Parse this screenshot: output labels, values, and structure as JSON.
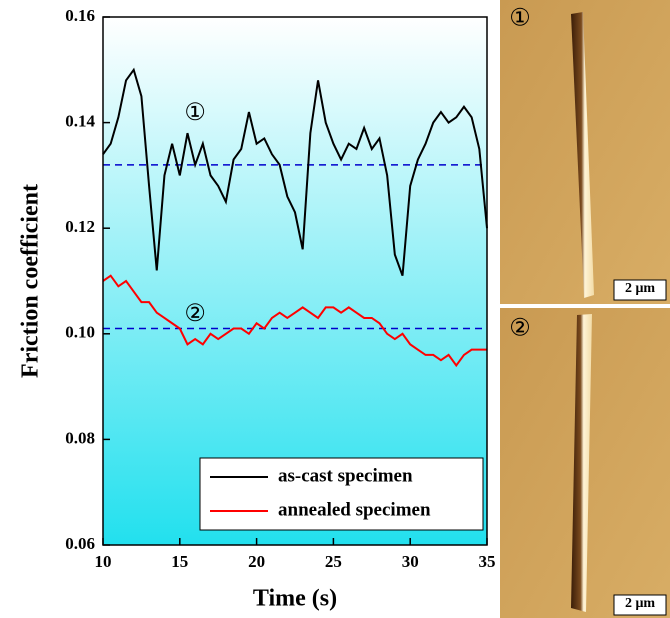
{
  "chart_data": {
    "type": "line",
    "xlabel": "Time (s)",
    "ylabel": "Friction coefficient",
    "x": [
      10,
      10.5,
      11,
      11.5,
      12,
      12.5,
      13,
      13.5,
      14,
      14.5,
      15,
      15.5,
      16,
      16.5,
      17,
      17.5,
      18,
      18.5,
      19,
      19.5,
      20,
      20.5,
      21,
      21.5,
      22,
      22.5,
      23,
      23.5,
      24,
      24.5,
      25,
      25.5,
      26,
      26.5,
      27,
      27.5,
      28,
      28.5,
      29,
      29.5,
      30,
      30.5,
      31,
      31.5,
      32,
      32.5,
      33,
      33.5,
      34,
      34.5,
      35
    ],
    "series": [
      {
        "name": "as-cast specimen",
        "color": "#000000",
        "values": [
          0.134,
          0.136,
          0.141,
          0.148,
          0.15,
          0.145,
          0.128,
          0.112,
          0.13,
          0.136,
          0.13,
          0.138,
          0.132,
          0.136,
          0.13,
          0.128,
          0.125,
          0.133,
          0.135,
          0.142,
          0.136,
          0.137,
          0.134,
          0.132,
          0.126,
          0.123,
          0.116,
          0.138,
          0.148,
          0.14,
          0.136,
          0.133,
          0.136,
          0.135,
          0.139,
          0.135,
          0.137,
          0.13,
          0.115,
          0.111,
          0.128,
          0.133,
          0.136,
          0.14,
          0.142,
          0.14,
          0.141,
          0.143,
          0.141,
          0.135,
          0.12
        ]
      },
      {
        "name": "annealed specimen",
        "color": "#ff0000",
        "values": [
          0.11,
          0.111,
          0.109,
          0.11,
          0.108,
          0.106,
          0.106,
          0.104,
          0.103,
          0.102,
          0.101,
          0.098,
          0.099,
          0.098,
          0.1,
          0.099,
          0.1,
          0.101,
          0.101,
          0.1,
          0.102,
          0.101,
          0.103,
          0.104,
          0.103,
          0.104,
          0.105,
          0.104,
          0.103,
          0.105,
          0.105,
          0.104,
          0.105,
          0.104,
          0.103,
          0.103,
          0.102,
          0.1,
          0.099,
          0.1,
          0.098,
          0.097,
          0.096,
          0.096,
          0.095,
          0.096,
          0.094,
          0.096,
          0.097,
          0.097,
          0.097
        ]
      }
    ],
    "hlines": [
      {
        "value": 0.132,
        "color": "#0000cc"
      },
      {
        "value": 0.101,
        "color": "#0000cc"
      }
    ],
    "annotations": [
      "①",
      "②"
    ],
    "xlim": [
      10,
      35
    ],
    "xticks": [
      10,
      15,
      20,
      25,
      30,
      35
    ],
    "ylim": [
      0.06,
      0.16
    ],
    "yticks": [
      0.06,
      0.08,
      {
        "value": 0.1,
        "label": "0.10"
      },
      0.12,
      0.14,
      0.16
    ],
    "legend": "lower right"
  },
  "images": [
    {
      "label": "①",
      "scale_bar": "2 μm"
    },
    {
      "label": "②",
      "scale_bar": "2 μm"
    }
  ]
}
